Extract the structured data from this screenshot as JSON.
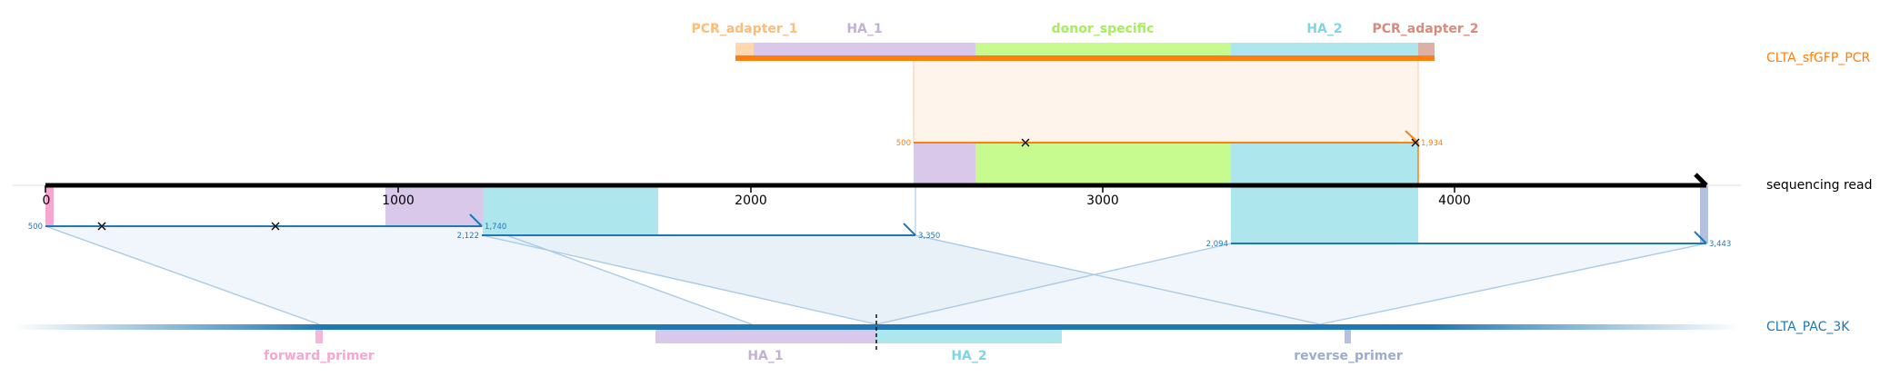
{
  "tracks": {
    "pcr": {
      "name": "CLTA_sfGFP_PCR",
      "color": "#ff7f0e"
    },
    "read": {
      "name": "sequencing read",
      "color": "#000000"
    },
    "ref": {
      "name": "CLTA_PAC_3K",
      "color": "#1f77b4"
    }
  },
  "read_axis": {
    "ticks": [
      "0",
      "1000",
      "2000",
      "3000",
      "4000"
    ]
  },
  "pcr_features": [
    {
      "name": "PCR_adapter_1",
      "color": "#ffbb78"
    },
    {
      "name": "HA_1",
      "color": "#c5b0d5"
    },
    {
      "name": "donor_specific",
      "color": "#a6ee5a"
    },
    {
      "name": "HA_2",
      "color": "#7fd4e6"
    },
    {
      "name": "PCR_adapter_2",
      "color": "#d98a7a"
    }
  ],
  "ref_features": [
    {
      "name": "forward_primer",
      "color": "#f7a6d0"
    },
    {
      "name": "HA_1",
      "color": "#c5b0d5"
    },
    {
      "name": "HA_2",
      "color": "#7fd4e6"
    },
    {
      "name": "reverse_primer",
      "color": "#9aadd0"
    }
  ],
  "alignments": [
    {
      "track": "ref",
      "start_label": "500",
      "end_label": "1,740"
    },
    {
      "track": "ref",
      "start_label": "2,122",
      "end_label": "3,350"
    },
    {
      "track": "ref",
      "start_label": "2,094",
      "end_label": "3,443"
    },
    {
      "track": "pcr",
      "start_label": "500",
      "end_label": "1,934"
    }
  ]
}
